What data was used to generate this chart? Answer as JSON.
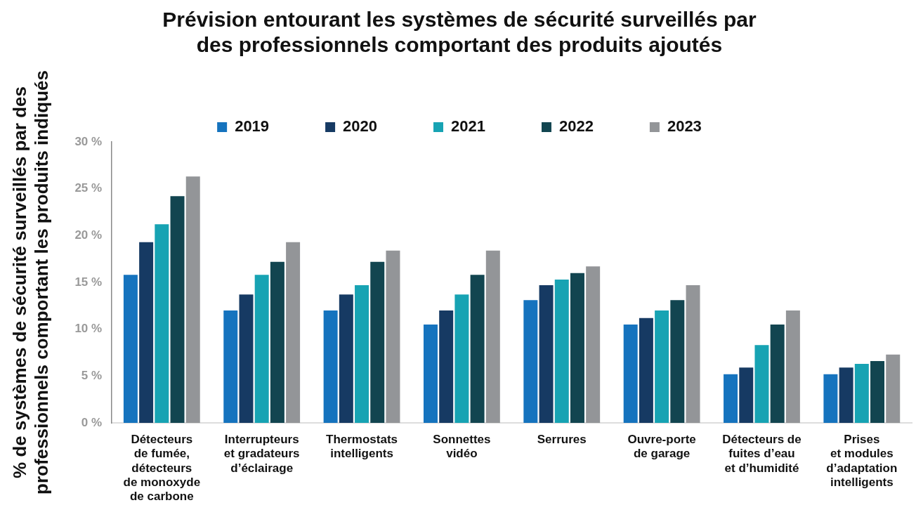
{
  "chart_data": {
    "type": "bar",
    "title": "Prévision entourant les systèmes de sécurité surveillés par\ndes professionnels comportant des produits ajoutés",
    "ylabel": "% de systèmes de sécurité surveillés par des\nprofessionnels comportant les produits indiqués",
    "categories": [
      "Détecteurs\nde fumée,\ndétecteurs\nde monoxyde\nde carbone",
      "Interrupteurs\net gradateurs\nd’éclairage",
      "Thermostats\nintelligents",
      "Sonnettes\nvidéo",
      "Serrures",
      "Ouvre-porte\nde garage",
      "Détecteurs de\nfuites d’eau\net d’humidité",
      "Prises\net modules\nd’adaptation\nintelligents"
    ],
    "series": [
      {
        "name": "2019",
        "color": "#1573be",
        "values": [
          15.8,
          12.0,
          12.0,
          10.5,
          13.1,
          10.5,
          5.2,
          5.2
        ]
      },
      {
        "name": "2020",
        "color": "#163a63",
        "values": [
          19.3,
          13.7,
          13.7,
          12.0,
          14.7,
          11.2,
          5.9,
          5.9
        ]
      },
      {
        "name": "2021",
        "color": "#17a3b3",
        "values": [
          21.2,
          15.8,
          14.7,
          13.7,
          15.3,
          12.0,
          8.3,
          6.3
        ]
      },
      {
        "name": "2022",
        "color": "#124550",
        "values": [
          24.2,
          17.2,
          17.2,
          15.8,
          16.0,
          13.1,
          10.5,
          6.6
        ]
      },
      {
        "name": "2023",
        "color": "#939598",
        "values": [
          26.3,
          19.3,
          18.4,
          18.4,
          16.7,
          14.7,
          12.0,
          7.3
        ]
      }
    ],
    "ylim": [
      0,
      30
    ],
    "yticks": [
      {
        "value": 0,
        "label": "0 %"
      },
      {
        "value": 5,
        "label": "5 %"
      },
      {
        "value": 10,
        "label": "10 %"
      },
      {
        "value": 15,
        "label": "15 %"
      },
      {
        "value": 20,
        "label": "20 %"
      },
      {
        "value": 25,
        "label": "25 %"
      },
      {
        "value": 30,
        "label": "30 %"
      }
    ],
    "grid": false,
    "legend": "top"
  }
}
